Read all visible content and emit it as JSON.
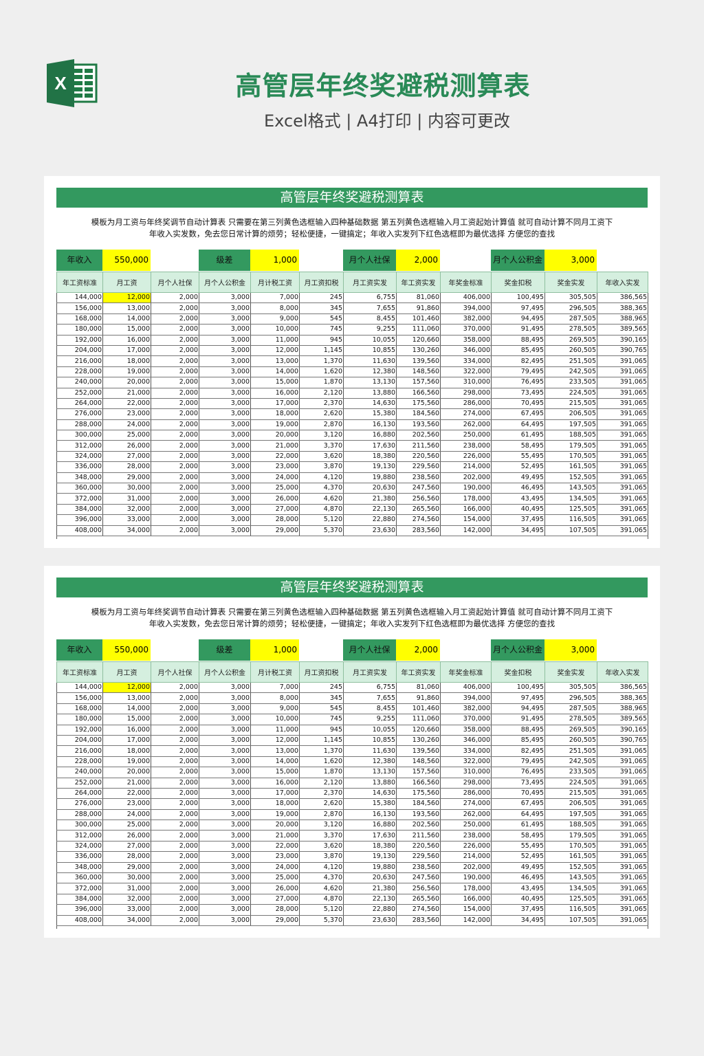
{
  "header": {
    "title": "高管层年终奖避税测算表",
    "subtitle": "Excel格式 | A4打印 | 内容可更改",
    "logo_letter": "X"
  },
  "colors": {
    "green": "#33995f",
    "yellow": "#ffff00",
    "header_fill": "#d5efdf"
  },
  "sheet": {
    "title": "高管层年终奖避税测算表",
    "desc_line1": "模板为月工资与年终奖调节自动计算表  只需要在第三列黄色选框输入四种基础数据  第五列黄色选框输入月工资起始计算值  就可自动计算不同月工资下",
    "desc_line2": "年收入实发数，免去您日常计算的烦劳；轻松便捷，一键搞定；年收入实发列下红色选框即为最优选择  方便您的查找",
    "inputs": [
      {
        "label": "年收入",
        "value": "550,000"
      },
      {
        "label": "级差",
        "value": "1,000"
      },
      {
        "label": "月个人社保",
        "value": "2,000"
      },
      {
        "label": "月个人公积金",
        "value": "3,000"
      }
    ],
    "columns": [
      "年工资标准",
      "月工资",
      "月个人社保",
      "月个人公积金",
      "月计税工资",
      "月工资扣税",
      "月工资实发",
      "年工资实发",
      "年奖金标准",
      "奖金扣税",
      "奖金实发",
      "年收入实发"
    ],
    "rows": [
      [
        "144,000",
        "12,000",
        "2,000",
        "3,000",
        "7,000",
        "245",
        "6,755",
        "81,060",
        "406,000",
        "100,495",
        "305,505",
        "386,565"
      ],
      [
        "156,000",
        "13,000",
        "2,000",
        "3,000",
        "8,000",
        "345",
        "7,655",
        "91,860",
        "394,000",
        "97,495",
        "296,505",
        "388,365"
      ],
      [
        "168,000",
        "14,000",
        "2,000",
        "3,000",
        "9,000",
        "545",
        "8,455",
        "101,460",
        "382,000",
        "94,495",
        "287,505",
        "388,965"
      ],
      [
        "180,000",
        "15,000",
        "2,000",
        "3,000",
        "10,000",
        "745",
        "9,255",
        "111,060",
        "370,000",
        "91,495",
        "278,505",
        "389,565"
      ],
      [
        "192,000",
        "16,000",
        "2,000",
        "3,000",
        "11,000",
        "945",
        "10,055",
        "120,660",
        "358,000",
        "88,495",
        "269,505",
        "390,165"
      ],
      [
        "204,000",
        "17,000",
        "2,000",
        "3,000",
        "12,000",
        "1,145",
        "10,855",
        "130,260",
        "346,000",
        "85,495",
        "260,505",
        "390,765"
      ],
      [
        "216,000",
        "18,000",
        "2,000",
        "3,000",
        "13,000",
        "1,370",
        "11,630",
        "139,560",
        "334,000",
        "82,495",
        "251,505",
        "391,065"
      ],
      [
        "228,000",
        "19,000",
        "2,000",
        "3,000",
        "14,000",
        "1,620",
        "12,380",
        "148,560",
        "322,000",
        "79,495",
        "242,505",
        "391,065"
      ],
      [
        "240,000",
        "20,000",
        "2,000",
        "3,000",
        "15,000",
        "1,870",
        "13,130",
        "157,560",
        "310,000",
        "76,495",
        "233,505",
        "391,065"
      ],
      [
        "252,000",
        "21,000",
        "2,000",
        "3,000",
        "16,000",
        "2,120",
        "13,880",
        "166,560",
        "298,000",
        "73,495",
        "224,505",
        "391,065"
      ],
      [
        "264,000",
        "22,000",
        "2,000",
        "3,000",
        "17,000",
        "2,370",
        "14,630",
        "175,560",
        "286,000",
        "70,495",
        "215,505",
        "391,065"
      ],
      [
        "276,000",
        "23,000",
        "2,000",
        "3,000",
        "18,000",
        "2,620",
        "15,380",
        "184,560",
        "274,000",
        "67,495",
        "206,505",
        "391,065"
      ],
      [
        "288,000",
        "24,000",
        "2,000",
        "3,000",
        "19,000",
        "2,870",
        "16,130",
        "193,560",
        "262,000",
        "64,495",
        "197,505",
        "391,065"
      ],
      [
        "300,000",
        "25,000",
        "2,000",
        "3,000",
        "20,000",
        "3,120",
        "16,880",
        "202,560",
        "250,000",
        "61,495",
        "188,505",
        "391,065"
      ],
      [
        "312,000",
        "26,000",
        "2,000",
        "3,000",
        "21,000",
        "3,370",
        "17,630",
        "211,560",
        "238,000",
        "58,495",
        "179,505",
        "391,065"
      ],
      [
        "324,000",
        "27,000",
        "2,000",
        "3,000",
        "22,000",
        "3,620",
        "18,380",
        "220,560",
        "226,000",
        "55,495",
        "170,505",
        "391,065"
      ],
      [
        "336,000",
        "28,000",
        "2,000",
        "3,000",
        "23,000",
        "3,870",
        "19,130",
        "229,560",
        "214,000",
        "52,495",
        "161,505",
        "391,065"
      ],
      [
        "348,000",
        "29,000",
        "2,000",
        "3,000",
        "24,000",
        "4,120",
        "19,880",
        "238,560",
        "202,000",
        "49,495",
        "152,505",
        "391,065"
      ],
      [
        "360,000",
        "30,000",
        "2,000",
        "3,000",
        "25,000",
        "4,370",
        "20,630",
        "247,560",
        "190,000",
        "46,495",
        "143,505",
        "391,065"
      ],
      [
        "372,000",
        "31,000",
        "2,000",
        "3,000",
        "26,000",
        "4,620",
        "21,380",
        "256,560",
        "178,000",
        "43,495",
        "134,505",
        "391,065"
      ],
      [
        "384,000",
        "32,000",
        "2,000",
        "3,000",
        "27,000",
        "4,870",
        "22,130",
        "265,560",
        "166,000",
        "40,495",
        "125,505",
        "391,065"
      ],
      [
        "396,000",
        "33,000",
        "2,000",
        "3,000",
        "28,000",
        "5,120",
        "22,880",
        "274,560",
        "154,000",
        "37,495",
        "116,505",
        "391,065"
      ],
      [
        "408,000",
        "34,000",
        "2,000",
        "3,000",
        "29,000",
        "5,370",
        "23,630",
        "283,560",
        "142,000",
        "34,495",
        "107,505",
        "391,065"
      ]
    ]
  }
}
